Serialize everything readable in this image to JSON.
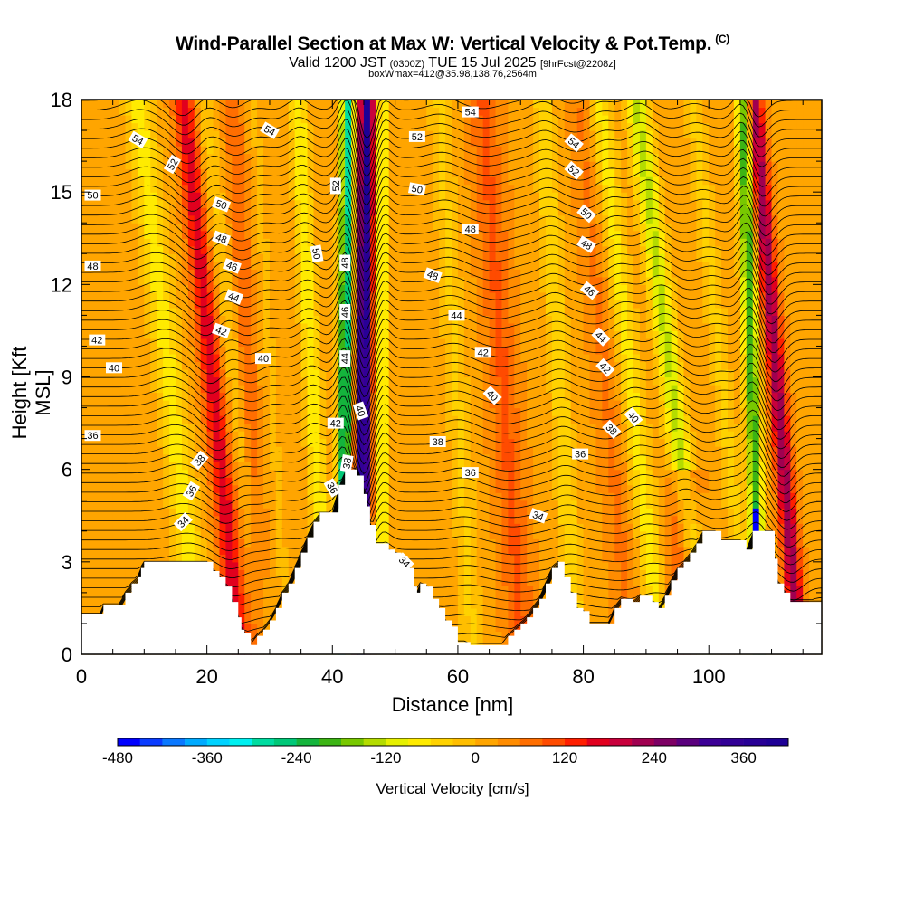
{
  "title": "Wind-Parallel Section at Max W: Vertical Velocity & Pot.Temp.",
  "title_mark": "(C)",
  "subtitle": {
    "valid": "Valid 1200 JST",
    "utc": "(0300Z)",
    "date": "TUE 15 Jul 2025",
    "forecast": "[9hrFcst@2208z]"
  },
  "subtitle2": "boxWmax=412@35.98,138.76,2564m",
  "chart_data": {
    "type": "heatmap",
    "xlabel": "Distance [nm]",
    "ylabel": "Height [Kft MSL]",
    "xlim": [
      0,
      118
    ],
    "ylim": [
      0,
      18
    ],
    "xticks": [
      0,
      20,
      40,
      60,
      80,
      100
    ],
    "yticks": [
      0,
      3,
      6,
      9,
      12,
      15,
      18
    ],
    "colorbar": {
      "label": "Vertical Velocity [cm/s]",
      "range": [
        -480,
        420
      ],
      "step": 30,
      "ticks": [
        -480,
        -360,
        -240,
        -120,
        0,
        120,
        240,
        360
      ],
      "colors": [
        "#0000ff",
        "#0a3cff",
        "#0a78ff",
        "#00aaff",
        "#00d2ff",
        "#00f0f0",
        "#00dca0",
        "#00c878",
        "#14b43c",
        "#3cb414",
        "#78c800",
        "#b4dc00",
        "#e6f000",
        "#ffeb00",
        "#ffd200",
        "#ffbe00",
        "#ffa500",
        "#ff8c00",
        "#ff6e00",
        "#ff4b00",
        "#ff1e00",
        "#e1001e",
        "#c8003c",
        "#a00050",
        "#7d0064",
        "#5a007d",
        "#3c0096",
        "#320096",
        "#280096",
        "#1e0096"
      ]
    },
    "isentrope_labels": [
      {
        "value": "54",
        "x": 9.0,
        "y": 16.7,
        "rot": 30
      },
      {
        "value": "52",
        "x": 14.5,
        "y": 15.9,
        "rot": -60
      },
      {
        "value": "50",
        "x": 1.8,
        "y": 14.9,
        "rot": 0
      },
      {
        "value": "48",
        "x": 1.8,
        "y": 12.6,
        "rot": 0
      },
      {
        "value": "42",
        "x": 2.5,
        "y": 10.2,
        "rot": 0
      },
      {
        "value": "40",
        "x": 5.2,
        "y": 9.3,
        "rot": 0
      },
      {
        "value": "36",
        "x": 1.8,
        "y": 7.1,
        "rot": 0
      },
      {
        "value": "54",
        "x": 30.0,
        "y": 17.0,
        "rot": 30
      },
      {
        "value": "50",
        "x": 22.3,
        "y": 14.6,
        "rot": 20
      },
      {
        "value": "48",
        "x": 22.3,
        "y": 13.5,
        "rot": 20
      },
      {
        "value": "46",
        "x": 24.0,
        "y": 12.6,
        "rot": 20
      },
      {
        "value": "44",
        "x": 24.3,
        "y": 11.6,
        "rot": 20
      },
      {
        "value": "42",
        "x": 22.3,
        "y": 10.5,
        "rot": 20
      },
      {
        "value": "40",
        "x": 29.0,
        "y": 9.6,
        "rot": 0
      },
      {
        "value": "38",
        "x": 18.8,
        "y": 6.3,
        "rot": -50
      },
      {
        "value": "36",
        "x": 17.5,
        "y": 5.3,
        "rot": -60
      },
      {
        "value": "34",
        "x": 16.2,
        "y": 4.3,
        "rot": -45
      },
      {
        "value": "50",
        "x": 37.5,
        "y": 13.0,
        "rot": 80
      },
      {
        "value": "52",
        "x": 40.5,
        "y": 15.2,
        "rot": -90
      },
      {
        "value": "48",
        "x": 42.0,
        "y": 12.7,
        "rot": -90
      },
      {
        "value": "46",
        "x": 42.0,
        "y": 11.1,
        "rot": -90
      },
      {
        "value": "44",
        "x": 42.0,
        "y": 9.6,
        "rot": -90
      },
      {
        "value": "42",
        "x": 40.5,
        "y": 7.5,
        "rot": 0
      },
      {
        "value": "40",
        "x": 44.5,
        "y": 7.9,
        "rot": 70
      },
      {
        "value": "38",
        "x": 42.3,
        "y": 6.2,
        "rot": -80
      },
      {
        "value": "36",
        "x": 40.0,
        "y": 5.4,
        "rot": 60
      },
      {
        "value": "54",
        "x": 62.0,
        "y": 17.6,
        "rot": 0
      },
      {
        "value": "52",
        "x": 53.5,
        "y": 16.8,
        "rot": 0
      },
      {
        "value": "50",
        "x": 53.5,
        "y": 15.1,
        "rot": 10
      },
      {
        "value": "48",
        "x": 62.0,
        "y": 13.8,
        "rot": 0
      },
      {
        "value": "48",
        "x": 56.0,
        "y": 12.3,
        "rot": 20
      },
      {
        "value": "44",
        "x": 59.8,
        "y": 11.0,
        "rot": 0
      },
      {
        "value": "42",
        "x": 64.0,
        "y": 9.8,
        "rot": 0
      },
      {
        "value": "40",
        "x": 65.5,
        "y": 8.4,
        "rot": 45
      },
      {
        "value": "38",
        "x": 56.8,
        "y": 6.9,
        "rot": 0
      },
      {
        "value": "36",
        "x": 62.0,
        "y": 5.9,
        "rot": 0
      },
      {
        "value": "34",
        "x": 51.5,
        "y": 3.0,
        "rot": 45
      },
      {
        "value": "34",
        "x": 72.8,
        "y": 4.5,
        "rot": 20
      },
      {
        "value": "54",
        "x": 78.5,
        "y": 16.6,
        "rot": 40
      },
      {
        "value": "52",
        "x": 78.5,
        "y": 15.7,
        "rot": 40
      },
      {
        "value": "50",
        "x": 80.5,
        "y": 14.3,
        "rot": 40
      },
      {
        "value": "48",
        "x": 80.5,
        "y": 13.3,
        "rot": 30
      },
      {
        "value": "46",
        "x": 81.0,
        "y": 11.8,
        "rot": 40
      },
      {
        "value": "44",
        "x": 82.8,
        "y": 10.3,
        "rot": 45
      },
      {
        "value": "42",
        "x": 83.5,
        "y": 9.3,
        "rot": 45
      },
      {
        "value": "40",
        "x": 88.0,
        "y": 7.7,
        "rot": 50
      },
      {
        "value": "38",
        "x": 84.5,
        "y": 7.3,
        "rot": 45
      },
      {
        "value": "36",
        "x": 79.5,
        "y": 6.5,
        "rot": 0
      }
    ]
  }
}
